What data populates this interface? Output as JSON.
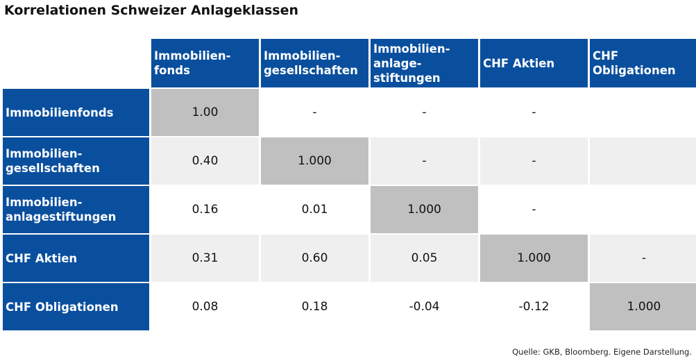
{
  "title": "Korrelationen Schweizer Anlageklassen",
  "source": "Quelle: GKB, Bloomberg. Eigene Darstellung.",
  "colors": {
    "header_blue": "#0a4f9e",
    "diagonal_grey": "#c0c0c0",
    "band_grey": "#efefef"
  },
  "chart_data": {
    "type": "table",
    "title": "Korrelationen Schweizer Anlageklassen",
    "columns": [
      "Immobilien-\nfonds",
      "Immobilien-\ngesellschaften",
      "Immobilien-\nanlage-\nstiftungen",
      "CHF Aktien",
      "CHF\nObligationen"
    ],
    "rows": [
      {
        "label": "Immobilienfonds",
        "cells": [
          "1.00",
          "-",
          "-",
          "-",
          ""
        ]
      },
      {
        "label": "Immobilien-\ngesellschaften",
        "cells": [
          "0.40",
          "1.000",
          "-",
          "-",
          ""
        ]
      },
      {
        "label": "Immobilien-\nanlagestiftungen",
        "cells": [
          "0.16",
          "0.01",
          "1.000",
          "-",
          ""
        ]
      },
      {
        "label": "CHF Aktien",
        "cells": [
          "0.31",
          "0.60",
          "0.05",
          "1.000",
          "-"
        ]
      },
      {
        "label": "CHF Obligationen",
        "cells": [
          "0.08",
          "0.18",
          "-0.04",
          "-0.12",
          "1.000"
        ]
      }
    ]
  }
}
